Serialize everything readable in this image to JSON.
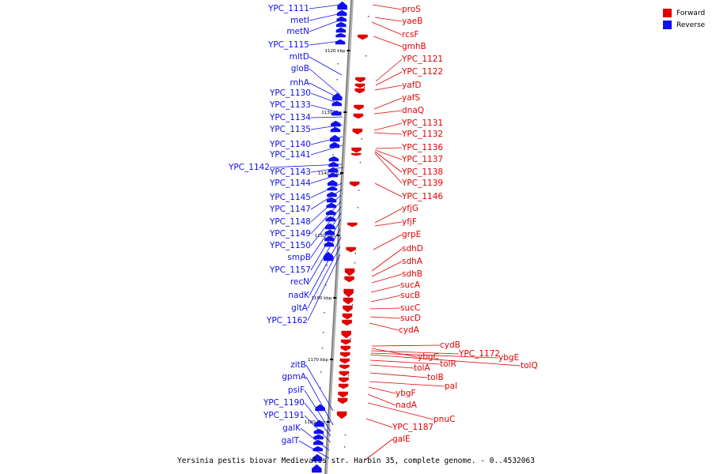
{
  "diagram": {
    "caption": "Yersinia pestis biovar Medievalis str. Harbin 35, complete genome. - 0..4532063",
    "colors": {
      "forward": "#e00000",
      "reverse": "#1010ee",
      "axis": "#999999"
    },
    "legend": [
      {
        "label": "Forward",
        "color": "#e00000"
      },
      {
        "label": "Reverse",
        "color": "#1010ee"
      }
    ],
    "ticks": [
      "1120 kbp",
      "1130 kbp",
      "1140 kbp",
      "1150 kbp",
      "1160 kbp",
      "1170 kbp",
      "1180 kbp"
    ],
    "reverse_labels": [
      "YPC_1111",
      "metI",
      "metN",
      "YPC_1115",
      "mltD",
      "gloB",
      "rnhA",
      "YPC_1130",
      "YPC_1133",
      "YPC_1134",
      "YPC_1135",
      "YPC_1140",
      "YPC_1141",
      "YPC_1142",
      "YPC_1143",
      "YPC_1144",
      "YPC_1145",
      "YPC_1147",
      "YPC_1148",
      "YPC_1149",
      "YPC_1150",
      "smpB",
      "YPC_1157",
      "recN",
      "nadK",
      "gltA",
      "YPC_1162",
      "zitB",
      "gpmA",
      "psiF",
      "YPC_1190",
      "YPC_1191",
      "galK",
      "galT"
    ],
    "forward_labels": [
      "proS",
      "yaeB",
      "rcsF",
      "gmhB",
      "YPC_1121",
      "YPC_1122",
      "yafD",
      "yafS",
      "dnaQ",
      "YPC_1131",
      "YPC_1132",
      "YPC_1136",
      "YPC_1137",
      "YPC_1138",
      "YPC_1139",
      "YPC_1146",
      "yfjG",
      "yfjF",
      "grpE",
      "sdhD",
      "sdhA",
      "sdhB",
      "sucA",
      "sucB",
      "sucC",
      "sucD",
      "cydA",
      "cydB",
      "ybgC",
      "YPC_1172",
      "ybgE",
      "tolQ",
      "tolR",
      "tolA",
      "tolB",
      "pal",
      "ybgF",
      "nadA",
      "pnuC",
      "YPC_1187",
      "galE"
    ]
  }
}
